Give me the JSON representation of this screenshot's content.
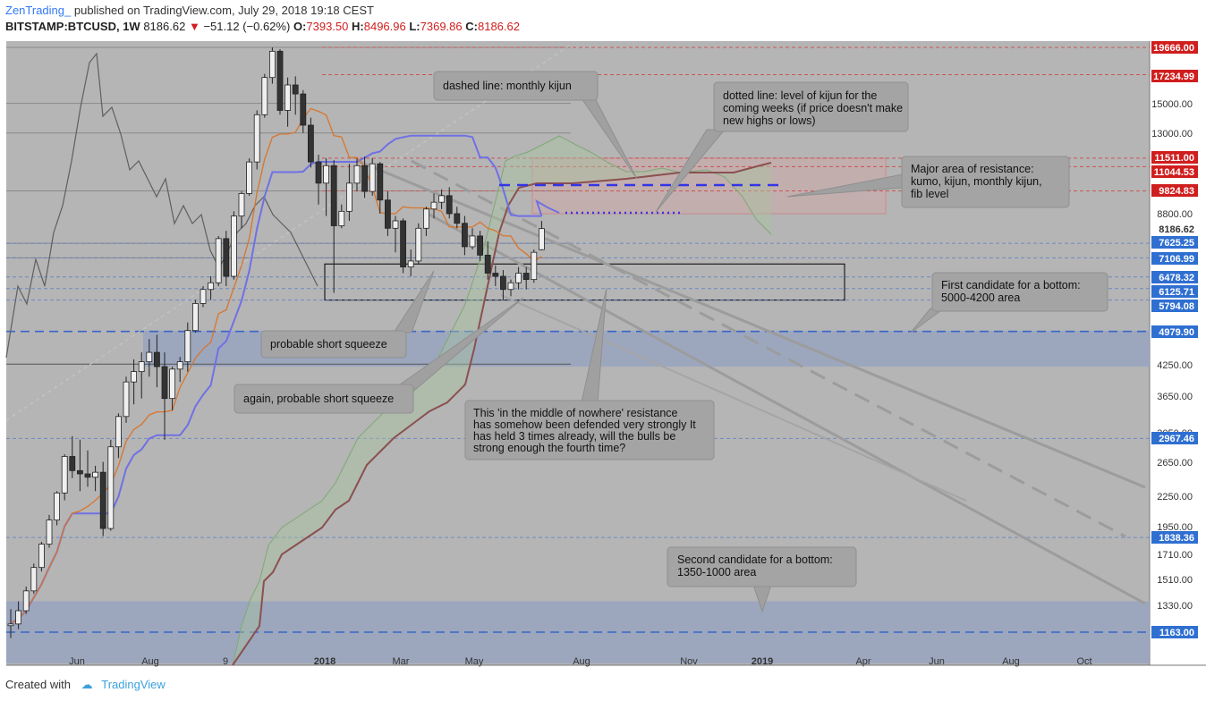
{
  "header": {
    "author": "ZenTrading_",
    "published": "published on TradingView.com, July 29, 2018 19:18 CEST",
    "symbol": "BITSTAMP:BTCUSD, 1W",
    "last": "8186.62",
    "change_arrow": "▼",
    "change": "−51.12 (−0.62%)",
    "o_label": "O:",
    "o": "7393.50",
    "h_label": "H:",
    "h": "8496.96",
    "l_label": "L:",
    "l": "7369.86",
    "c_label": "C:",
    "c": "8186.62"
  },
  "footer": {
    "created_with": "Created with",
    "brand": "TradingView",
    "logo_icon": "tradingview-cloud-icon"
  },
  "colors": {
    "background": "#b5b5b5",
    "bull": "#efefef",
    "bear": "#333333",
    "kijun": "#7070e6",
    "tenkan": "#d8752d",
    "senkou": "#8b5050",
    "kumo": "#a9c4a0",
    "label_red": "#d01e1e",
    "label_blue": "#2f6fd1",
    "zone": "#94a3c2"
  },
  "chart_data": {
    "type": "candlestick",
    "scale": "log",
    "x_tick_labels": [
      "Jun",
      "Aug",
      "9",
      "2018",
      "Mar",
      "May",
      "Aug",
      "Nov",
      "2019",
      "Apr",
      "Jun",
      "Aug",
      "Oct"
    ],
    "y_tick_labels": [
      "15000.00",
      "13000.00",
      "8800.00",
      "4250.00",
      "3650.00",
      "3050.00",
      "2650.00",
      "2250.00",
      "1950.00",
      "1710.00",
      "1510.00",
      "1330.00"
    ],
    "price_labels": [
      {
        "text": "19666.00",
        "color": "red"
      },
      {
        "text": "17234.99",
        "color": "red"
      },
      {
        "text": "11511.00",
        "color": "red"
      },
      {
        "text": "11044.53",
        "color": "red"
      },
      {
        "text": "9824.83",
        "color": "red"
      },
      {
        "text": "8186.62",
        "color": "plain"
      },
      {
        "text": "7625.25",
        "color": "blue"
      },
      {
        "text": "7106.99",
        "color": "blue"
      },
      {
        "text": "6478.32",
        "color": "blue"
      },
      {
        "text": "6125.71",
        "color": "blue"
      },
      {
        "text": "5794.08",
        "color": "blue"
      },
      {
        "text": "4979.90",
        "color": "blue"
      },
      {
        "text": "2967.46",
        "color": "blue"
      },
      {
        "text": "1838.36",
        "color": "blue"
      },
      {
        "text": "1163.00",
        "color": "blue"
      }
    ],
    "annotations": [
      {
        "text": "dashed line: monthly kijun"
      },
      {
        "text": "dotted line: level of kijun for the coming weeks (if price doesn't make new highs or lows)"
      },
      {
        "text": "Major area of resistance: kumo, kijun, monthly kijun, fib level"
      },
      {
        "text": "First candidate for a bottom: 5000-4200 area"
      },
      {
        "text": "probable short squeeze"
      },
      {
        "text": "again, probable short squeeze"
      },
      {
        "text": "This 'in the middle of nowhere' resistance has somehow been defended very strongly It has held 3 times already, will the bulls be strong enough the fourth time?"
      },
      {
        "text": "Second candidate for a bottom: 1350-1000 area"
      }
    ],
    "zones": [
      {
        "name": "resistance",
        "low": 8800,
        "high": 11511
      },
      {
        "name": "first-bottom",
        "low": 4200,
        "high": 5000
      },
      {
        "name": "second-bottom",
        "low": 1000,
        "high": 1350
      },
      {
        "name": "nowhere-resistance",
        "low": 5794.08,
        "high": 6900
      }
    ],
    "ohlc": [
      [
        1200,
        1300,
        1130,
        1210
      ],
      [
        1210,
        1350,
        1180,
        1290
      ],
      [
        1290,
        1450,
        1270,
        1420
      ],
      [
        1420,
        1620,
        1400,
        1590
      ],
      [
        1590,
        1800,
        1560,
        1780
      ],
      [
        1780,
        2050,
        1750,
        2000
      ],
      [
        2000,
        2300,
        1950,
        2280
      ],
      [
        2280,
        2750,
        2200,
        2720
      ],
      [
        2720,
        3000,
        2450,
        2540
      ],
      [
        2540,
        2950,
        2300,
        2500
      ],
      [
        2500,
        2800,
        2350,
        2460
      ],
      [
        2460,
        2600,
        2300,
        2520
      ],
      [
        2520,
        2650,
        1850,
        1920
      ],
      [
        1920,
        2950,
        1900,
        2850
      ],
      [
        2850,
        3350,
        2700,
        3300
      ],
      [
        3300,
        4000,
        3200,
        3900
      ],
      [
        3900,
        4350,
        3500,
        4100
      ],
      [
        4100,
        4500,
        3600,
        4300
      ],
      [
        4300,
        4800,
        4000,
        4500
      ],
      [
        4500,
        4900,
        3800,
        4200
      ],
      [
        4200,
        4500,
        2950,
        3600
      ],
      [
        3600,
        4200,
        3400,
        4150
      ],
      [
        4150,
        4400,
        3900,
        4300
      ],
      [
        4300,
        5200,
        4100,
        5000
      ],
      [
        5000,
        5800,
        4950,
        5700
      ],
      [
        5700,
        6200,
        5600,
        6100
      ],
      [
        6100,
        6500,
        5800,
        6300
      ],
      [
        6300,
        7900,
        6200,
        7800
      ],
      [
        7800,
        8100,
        6200,
        6500
      ],
      [
        6500,
        8900,
        6400,
        8700
      ],
      [
        8700,
        9800,
        8200,
        9700
      ],
      [
        9700,
        11500,
        9600,
        11300
      ],
      [
        11300,
        14500,
        10900,
        14200
      ],
      [
        14200,
        17300,
        14000,
        17000
      ],
      [
        17000,
        19666,
        16500,
        19300
      ],
      [
        19300,
        19500,
        14200,
        14500
      ],
      [
        14500,
        17000,
        13400,
        16400
      ],
      [
        16400,
        17100,
        14200,
        15700
      ],
      [
        15700,
        16000,
        13000,
        13500
      ],
      [
        13500,
        14000,
        11000,
        11300
      ],
      [
        11300,
        11700,
        9200,
        10200
      ],
      [
        10200,
        11500,
        8700,
        11100
      ],
      [
        11100,
        11400,
        6000,
        8300
      ],
      [
        8300,
        9200,
        8200,
        8900
      ],
      [
        8900,
        11200,
        8500,
        10200
      ],
      [
        10200,
        11500,
        9800,
        11100
      ],
      [
        11100,
        11600,
        9500,
        9800
      ],
      [
        9800,
        11500,
        9600,
        11200
      ],
      [
        11200,
        11300,
        8800,
        9400
      ],
      [
        9400,
        9800,
        7900,
        8200
      ],
      [
        8200,
        8700,
        7300,
        8500
      ],
      [
        8500,
        8600,
        6600,
        6800
      ],
      [
        6800,
        7400,
        6500,
        7000
      ],
      [
        7000,
        8400,
        6900,
        8200
      ],
      [
        8200,
        9100,
        7900,
        9000
      ],
      [
        9000,
        9700,
        8600,
        9300
      ],
      [
        9300,
        9900,
        9000,
        9600
      ],
      [
        9600,
        10000,
        8600,
        8800
      ],
      [
        8800,
        9100,
        8200,
        8400
      ],
      [
        8400,
        8700,
        7200,
        7500
      ],
      [
        7500,
        8200,
        7400,
        7900
      ],
      [
        7900,
        8100,
        7000,
        7200
      ],
      [
        7200,
        7700,
        6400,
        6600
      ],
      [
        6600,
        6850,
        6200,
        6500
      ],
      [
        6500,
        6700,
        5800,
        6100
      ],
      [
        6100,
        6400,
        5900,
        6300
      ],
      [
        6300,
        6800,
        6100,
        6600
      ],
      [
        6600,
        6800,
        6100,
        6400
      ],
      [
        6400,
        7400,
        6300,
        7300
      ],
      [
        7393.5,
        8496.96,
        7369.86,
        8186.62
      ]
    ]
  }
}
